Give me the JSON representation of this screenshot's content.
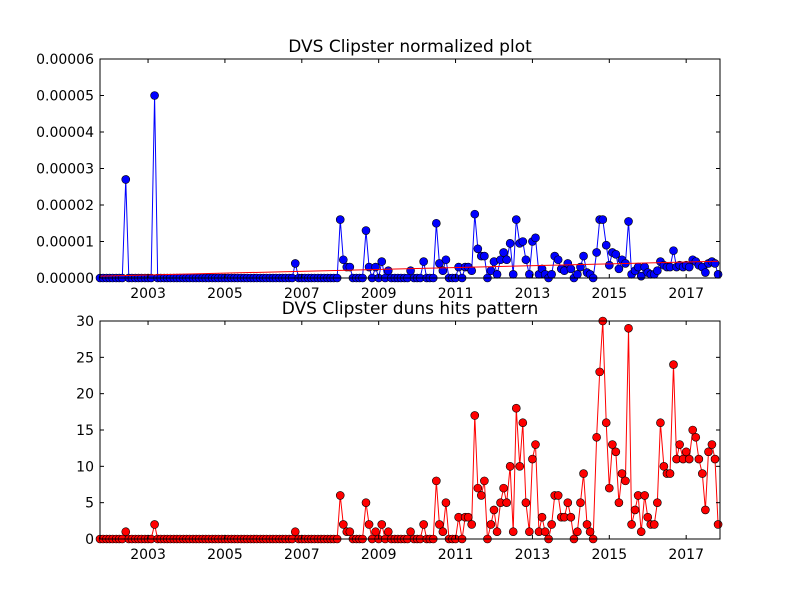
{
  "chart_data": [
    {
      "type": "line",
      "title": "DVS Clipster normalized plot",
      "xlim": [
        2001.75,
        2017.88
      ],
      "xticks": [
        2003,
        2005,
        2007,
        2009,
        2011,
        2013,
        2015,
        2017
      ],
      "ylim": [
        0,
        6e-05
      ],
      "yticks": [
        {
          "value": 0,
          "label": "0.00000"
        },
        {
          "value": 1e-05,
          "label": "0.00001"
        },
        {
          "value": 2e-05,
          "label": "0.00002"
        },
        {
          "value": 3e-05,
          "label": "0.00003"
        },
        {
          "value": 4e-05,
          "label": "0.00004"
        },
        {
          "value": 5e-05,
          "label": "0.00005"
        },
        {
          "value": 6e-05,
          "label": "0.00006"
        }
      ],
      "x": [
        2001.75,
        2001.83,
        2001.92,
        2002,
        2002.08,
        2002.17,
        2002.25,
        2002.33,
        2002.42,
        2002.5,
        2002.58,
        2002.67,
        2002.75,
        2002.83,
        2002.92,
        2003,
        2003.08,
        2003.17,
        2003.25,
        2003.33,
        2003.42,
        2003.5,
        2003.58,
        2003.67,
        2003.75,
        2003.83,
        2003.92,
        2004,
        2004.08,
        2004.17,
        2004.25,
        2004.33,
        2004.42,
        2004.5,
        2004.58,
        2004.67,
        2004.75,
        2004.83,
        2004.92,
        2005,
        2005.08,
        2005.17,
        2005.25,
        2005.33,
        2005.42,
        2005.5,
        2005.58,
        2005.67,
        2005.75,
        2005.83,
        2005.92,
        2006,
        2006.08,
        2006.17,
        2006.25,
        2006.33,
        2006.42,
        2006.5,
        2006.58,
        2006.67,
        2006.75,
        2006.83,
        2006.92,
        2007,
        2007.08,
        2007.17,
        2007.25,
        2007.33,
        2007.42,
        2007.5,
        2007.58,
        2007.67,
        2007.75,
        2007.83,
        2007.92,
        2008,
        2008.08,
        2008.17,
        2008.25,
        2008.33,
        2008.42,
        2008.5,
        2008.58,
        2008.67,
        2008.75,
        2008.83,
        2008.92,
        2009,
        2009.08,
        2009.17,
        2009.25,
        2009.33,
        2009.42,
        2009.5,
        2009.58,
        2009.67,
        2009.75,
        2009.83,
        2009.92,
        2010,
        2010.08,
        2010.17,
        2010.25,
        2010.33,
        2010.42,
        2010.5,
        2010.58,
        2010.67,
        2010.75,
        2010.83,
        2010.92,
        2011,
        2011.08,
        2011.17,
        2011.25,
        2011.33,
        2011.42,
        2011.5,
        2011.58,
        2011.67,
        2011.75,
        2011.83,
        2011.92,
        2012,
        2012.08,
        2012.17,
        2012.25,
        2012.33,
        2012.42,
        2012.5,
        2012.58,
        2012.67,
        2012.75,
        2012.83,
        2012.92,
        2013,
        2013.08,
        2013.17,
        2013.25,
        2013.33,
        2013.42,
        2013.5,
        2013.58,
        2013.67,
        2013.75,
        2013.83,
        2013.92,
        2014,
        2014.08,
        2014.17,
        2014.25,
        2014.33,
        2014.42,
        2014.5,
        2014.58,
        2014.67,
        2014.75,
        2014.83,
        2014.92,
        2015,
        2015.08,
        2015.17,
        2015.25,
        2015.33,
        2015.42,
        2015.5,
        2015.58,
        2015.67,
        2015.75,
        2015.83,
        2015.92,
        2016,
        2016.08,
        2016.17,
        2016.25,
        2016.33,
        2016.42,
        2016.5,
        2016.58,
        2016.67,
        2016.75,
        2016.83,
        2016.92,
        2017,
        2017.08,
        2017.17,
        2017.25,
        2017.33,
        2017.42,
        2017.5,
        2017.58,
        2017.67,
        2017.75,
        2017.83
      ],
      "series": [
        {
          "color": "#0000ff",
          "marker": "o",
          "values": [
            0,
            0,
            0,
            0,
            0,
            0,
            0,
            0,
            2.7e-05,
            0,
            0,
            0,
            0,
            0,
            0,
            0,
            0,
            5e-05,
            0,
            0,
            0,
            0,
            0,
            0,
            0,
            0,
            0,
            0,
            0,
            0,
            0,
            0,
            0,
            0,
            0,
            0,
            0,
            0,
            0,
            0,
            0,
            0,
            0,
            0,
            0,
            0,
            0,
            0,
            0,
            0,
            0,
            0,
            0,
            0,
            0,
            0,
            0,
            0,
            0,
            0,
            0,
            4e-06,
            0,
            0,
            0,
            0,
            0,
            0,
            0,
            0,
            0,
            0,
            0,
            0,
            0,
            1.6e-05,
            5e-06,
            3e-06,
            3e-06,
            0,
            0,
            0,
            0,
            1.3e-05,
            3e-06,
            0,
            3e-06,
            0,
            4.5e-06,
            0,
            2e-06,
            0,
            0,
            0,
            0,
            0,
            0,
            2e-06,
            0,
            0,
            0,
            4.5e-06,
            0,
            0,
            0,
            1.5e-05,
            4e-06,
            2e-06,
            5e-06,
            0,
            0,
            0,
            3e-06,
            0,
            3e-06,
            3e-06,
            2e-06,
            1.75e-05,
            8e-06,
            6e-06,
            6e-06,
            0,
            2e-06,
            4.5e-06,
            1e-06,
            5e-06,
            7e-06,
            5e-06,
            9.5e-06,
            1e-06,
            1.6e-05,
            9.5e-06,
            1e-05,
            5e-06,
            1e-06,
            1e-05,
            1.1e-05,
            1e-06,
            2.5e-06,
            1e-06,
            0,
            1e-06,
            6e-06,
            5e-06,
            2.5e-06,
            2e-06,
            4e-06,
            2.5e-06,
            0,
            1e-06,
            3e-06,
            6e-06,
            1.5e-06,
            1e-06,
            0,
            7e-06,
            1.6e-05,
            1.6e-05,
            9e-06,
            3.5e-06,
            7e-06,
            6.5e-06,
            2.5e-06,
            5e-06,
            4e-06,
            1.55e-05,
            1e-06,
            2e-06,
            3e-06,
            5e-07,
            3e-06,
            1.5e-06,
            1e-06,
            1e-06,
            2e-06,
            4.5e-06,
            3.5e-06,
            3e-06,
            3e-06,
            7.5e-06,
            3e-06,
            3.5e-06,
            3e-06,
            3.5e-06,
            3e-06,
            5e-06,
            4.5e-06,
            3.5e-06,
            3e-06,
            1.5e-06,
            4e-06,
            4.5e-06,
            4e-06,
            1e-06
          ]
        },
        {
          "color": "#ff0000",
          "x": [
            2001.75,
            2017.83
          ],
          "values": [
            5e-07,
            4.6e-06
          ]
        }
      ]
    },
    {
      "type": "line",
      "title": "DVS Clipster duns hits pattern",
      "xlim": [
        2001.75,
        2017.88
      ],
      "xticks": [
        2003,
        2005,
        2007,
        2009,
        2011,
        2013,
        2015,
        2017
      ],
      "ylim": [
        0,
        30
      ],
      "yticks": [
        0,
        5,
        10,
        15,
        20,
        25,
        30
      ],
      "x": [
        2001.75,
        2001.83,
        2001.92,
        2002,
        2002.08,
        2002.17,
        2002.25,
        2002.33,
        2002.42,
        2002.5,
        2002.58,
        2002.67,
        2002.75,
        2002.83,
        2002.92,
        2003,
        2003.08,
        2003.17,
        2003.25,
        2003.33,
        2003.42,
        2003.5,
        2003.58,
        2003.67,
        2003.75,
        2003.83,
        2003.92,
        2004,
        2004.08,
        2004.17,
        2004.25,
        2004.33,
        2004.42,
        2004.5,
        2004.58,
        2004.67,
        2004.75,
        2004.83,
        2004.92,
        2005,
        2005.08,
        2005.17,
        2005.25,
        2005.33,
        2005.42,
        2005.5,
        2005.58,
        2005.67,
        2005.75,
        2005.83,
        2005.92,
        2006,
        2006.08,
        2006.17,
        2006.25,
        2006.33,
        2006.42,
        2006.5,
        2006.58,
        2006.67,
        2006.75,
        2006.83,
        2006.92,
        2007,
        2007.08,
        2007.17,
        2007.25,
        2007.33,
        2007.42,
        2007.5,
        2007.58,
        2007.67,
        2007.75,
        2007.83,
        2007.92,
        2008,
        2008.08,
        2008.17,
        2008.25,
        2008.33,
        2008.42,
        2008.5,
        2008.58,
        2008.67,
        2008.75,
        2008.83,
        2008.92,
        2009,
        2009.08,
        2009.17,
        2009.25,
        2009.33,
        2009.42,
        2009.5,
        2009.58,
        2009.67,
        2009.75,
        2009.83,
        2009.92,
        2010,
        2010.08,
        2010.17,
        2010.25,
        2010.33,
        2010.42,
        2010.5,
        2010.58,
        2010.67,
        2010.75,
        2010.83,
        2010.92,
        2011,
        2011.08,
        2011.17,
        2011.25,
        2011.33,
        2011.42,
        2011.5,
        2011.58,
        2011.67,
        2011.75,
        2011.83,
        2011.92,
        2012,
        2012.08,
        2012.17,
        2012.25,
        2012.33,
        2012.42,
        2012.5,
        2012.58,
        2012.67,
        2012.75,
        2012.83,
        2012.92,
        2013,
        2013.08,
        2013.17,
        2013.25,
        2013.33,
        2013.42,
        2013.5,
        2013.58,
        2013.67,
        2013.75,
        2013.83,
        2013.92,
        2014,
        2014.08,
        2014.17,
        2014.25,
        2014.33,
        2014.42,
        2014.5,
        2014.58,
        2014.67,
        2014.75,
        2014.83,
        2014.92,
        2015,
        2015.08,
        2015.17,
        2015.25,
        2015.33,
        2015.42,
        2015.5,
        2015.58,
        2015.67,
        2015.75,
        2015.83,
        2015.92,
        2016,
        2016.08,
        2016.17,
        2016.25,
        2016.33,
        2016.42,
        2016.5,
        2016.58,
        2016.67,
        2016.75,
        2016.83,
        2016.92,
        2017,
        2017.08,
        2017.17,
        2017.25,
        2017.33,
        2017.42,
        2017.5,
        2017.58,
        2017.67,
        2017.75,
        2017.83
      ],
      "series": [
        {
          "color": "#ff0000",
          "marker": "o",
          "values": [
            0,
            0,
            0,
            0,
            0,
            0,
            0,
            0,
            1,
            0,
            0,
            0,
            0,
            0,
            0,
            0,
            0,
            2,
            0,
            0,
            0,
            0,
            0,
            0,
            0,
            0,
            0,
            0,
            0,
            0,
            0,
            0,
            0,
            0,
            0,
            0,
            0,
            0,
            0,
            0,
            0,
            0,
            0,
            0,
            0,
            0,
            0,
            0,
            0,
            0,
            0,
            0,
            0,
            0,
            0,
            0,
            0,
            0,
            0,
            0,
            0,
            1,
            0,
            0,
            0,
            0,
            0,
            0,
            0,
            0,
            0,
            0,
            0,
            0,
            0,
            6,
            2,
            1,
            1,
            0,
            0,
            0,
            0,
            5,
            2,
            0,
            1,
            0,
            2,
            0,
            1,
            0,
            0,
            0,
            0,
            0,
            0,
            1,
            0,
            0,
            0,
            2,
            0,
            0,
            0,
            8,
            2,
            1,
            5,
            0,
            0,
            0,
            3,
            0,
            3,
            3,
            2,
            17,
            7,
            6,
            8,
            0,
            2,
            4,
            1,
            5,
            7,
            5,
            10,
            1,
            18,
            10,
            16,
            5,
            1,
            11,
            13,
            1,
            3,
            1,
            0,
            2,
            6,
            6,
            3,
            3,
            5,
            3,
            0,
            1,
            5,
            9,
            2,
            1,
            0,
            14,
            23,
            30,
            16,
            7,
            13,
            12,
            5,
            9,
            8,
            29,
            2,
            4,
            6,
            1,
            6,
            3,
            2,
            2,
            5,
            16,
            10,
            9,
            9,
            24,
            11,
            13,
            11,
            12,
            11,
            15,
            14,
            11,
            9,
            4,
            12,
            13,
            11,
            2
          ]
        }
      ]
    }
  ]
}
